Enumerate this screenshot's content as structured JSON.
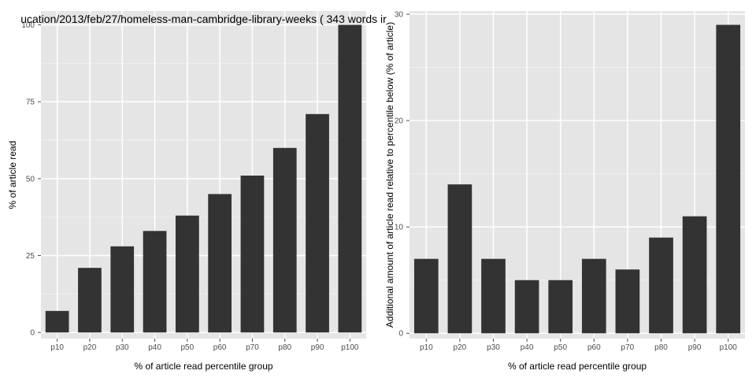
{
  "chart_data": [
    {
      "type": "bar",
      "title": "ucation/2013/feb/27/homeless-man-cambridge-library-weeks ( 343 words ir",
      "xlabel": "% of article read percentile group",
      "ylabel": "% of article read",
      "categories": [
        "p10",
        "p20",
        "p30",
        "p40",
        "p50",
        "p60",
        "p70",
        "p80",
        "p90",
        "p100"
      ],
      "values": [
        7,
        21,
        28,
        33,
        38,
        45,
        51,
        60,
        71,
        100
      ],
      "ylim": [
        -2,
        104.5
      ],
      "yticks": [
        0,
        25,
        50,
        75,
        100
      ],
      "grid": true
    },
    {
      "type": "bar",
      "title": "",
      "xlabel": "% of article read percentile group",
      "ylabel": "Additional amount of article read relative to percentile below (% of article)",
      "categories": [
        "p10",
        "p20",
        "p30",
        "p40",
        "p50",
        "p60",
        "p70",
        "p80",
        "p90",
        "p100"
      ],
      "values": [
        7,
        14,
        7,
        5,
        5,
        7,
        6,
        9,
        11,
        29
      ],
      "ylim": [
        -0.5,
        30.3
      ],
      "yticks": [
        0,
        10,
        20,
        30
      ],
      "grid": true
    }
  ],
  "colors": {
    "panel_background": "#e5e5e5",
    "grid_major": "#ffffff",
    "grid_minor": "#f2f2f2",
    "bar_fill": "#333333",
    "tick_text": "#4d4d4d",
    "label_text": "#000000"
  }
}
